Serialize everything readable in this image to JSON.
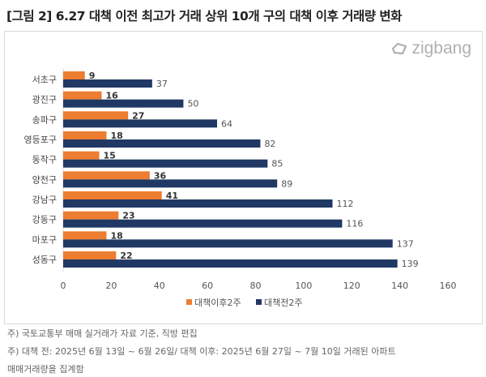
{
  "title": "[그림 2] 6.27 대책 이전 최고가 거래 상위 10개 구의 대책 이후 거래량 변화",
  "logo": "zigbang",
  "chart_data": {
    "type": "bar",
    "orientation": "horizontal",
    "categories": [
      "서초구",
      "광진구",
      "송파구",
      "영등포구",
      "동작구",
      "양천구",
      "강남구",
      "강동구",
      "마포구",
      "성동구"
    ],
    "series": [
      {
        "name": "대책이후2주",
        "color": "#ed7d31",
        "values": [
          9,
          16,
          27,
          18,
          15,
          36,
          41,
          23,
          18,
          22
        ]
      },
      {
        "name": "대책전2주",
        "color": "#203864",
        "values": [
          37,
          50,
          64,
          82,
          85,
          89,
          112,
          116,
          137,
          139
        ]
      }
    ],
    "xlim": [
      0,
      160
    ],
    "xticks": [
      "0",
      "20",
      "40",
      "60",
      "80",
      "100",
      "120",
      "140",
      "160"
    ],
    "grid": false,
    "legend": "bottom"
  },
  "footnotes": [
    "주) 국토교통부 매매 실거래가 자료 기준, 직방 편집",
    "주) 대책 전: 2025년 6월 13일 ~ 6월 26일/ 대책 이후: 2025년 6월 27일 ~ 7월 10일 거래된 아파트",
    "매매거래량을 집계함"
  ]
}
